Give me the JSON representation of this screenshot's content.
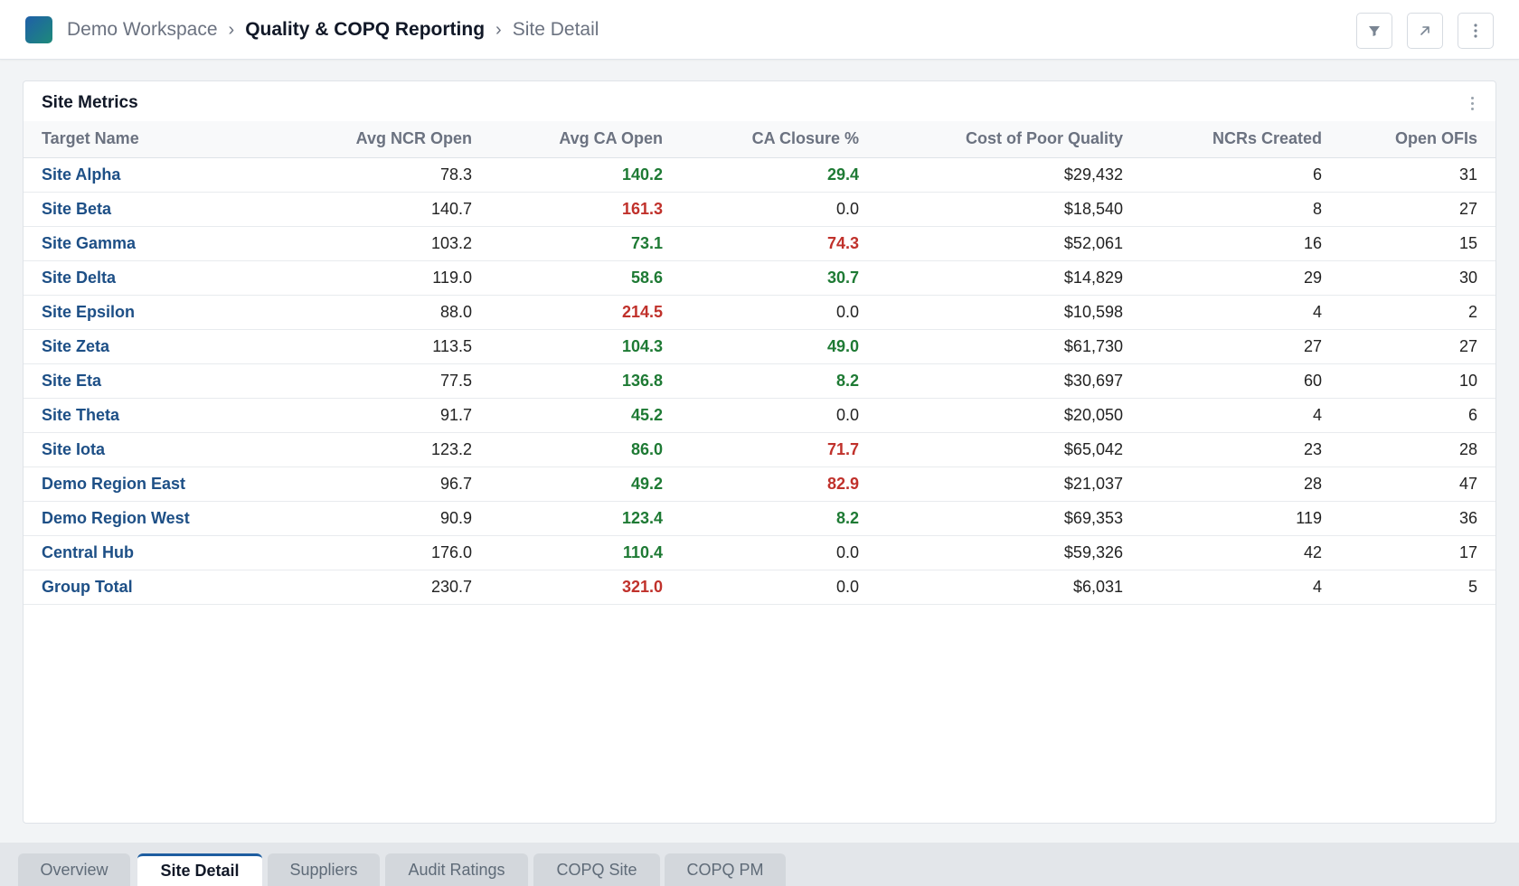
{
  "header": {
    "breadcrumbs": [
      "Demo Workspace",
      "Quality & COPQ Reporting",
      "Site Detail"
    ],
    "separator": "›",
    "actions": {
      "filter_icon": "filter-icon",
      "expand_icon": "expand-icon",
      "more_icon": "more-vertical-icon"
    }
  },
  "card": {
    "title": "Site Metrics",
    "columns": [
      "Target Name",
      "Avg NCR Open",
      "Avg CA Open",
      "CA Closure %",
      "Cost of Poor Quality",
      "NCRs Created",
      "Open OFIs"
    ],
    "rows": [
      {
        "name": "Site Alpha",
        "avg_ncr_open": "78.3",
        "avg_ca_open": "140.2",
        "avg_ca_status": "good",
        "ca_closure": "29.4",
        "ca_closure_status": "good",
        "copq": "$29,432",
        "ncrs_created": "6",
        "open_ofis": "31"
      },
      {
        "name": "Site Beta",
        "avg_ncr_open": "140.7",
        "avg_ca_open": "161.3",
        "avg_ca_status": "bad",
        "ca_closure": "0.0",
        "ca_closure_status": "neutral",
        "copq": "$18,540",
        "ncrs_created": "8",
        "open_ofis": "27"
      },
      {
        "name": "Site Gamma",
        "avg_ncr_open": "103.2",
        "avg_ca_open": "73.1",
        "avg_ca_status": "good",
        "ca_closure": "74.3",
        "ca_closure_status": "bad",
        "copq": "$52,061",
        "ncrs_created": "16",
        "open_ofis": "15"
      },
      {
        "name": "Site Delta",
        "avg_ncr_open": "119.0",
        "avg_ca_open": "58.6",
        "avg_ca_status": "good",
        "ca_closure": "30.7",
        "ca_closure_status": "good",
        "copq": "$14,829",
        "ncrs_created": "29",
        "open_ofis": "30"
      },
      {
        "name": "Site Epsilon",
        "avg_ncr_open": "88.0",
        "avg_ca_open": "214.5",
        "avg_ca_status": "bad",
        "ca_closure": "0.0",
        "ca_closure_status": "neutral",
        "copq": "$10,598",
        "ncrs_created": "4",
        "open_ofis": "2"
      },
      {
        "name": "Site Zeta",
        "avg_ncr_open": "113.5",
        "avg_ca_open": "104.3",
        "avg_ca_status": "good",
        "ca_closure": "49.0",
        "ca_closure_status": "good",
        "copq": "$61,730",
        "ncrs_created": "27",
        "open_ofis": "27"
      },
      {
        "name": "Site Eta",
        "avg_ncr_open": "77.5",
        "avg_ca_open": "136.8",
        "avg_ca_status": "good",
        "ca_closure": "8.2",
        "ca_closure_status": "good",
        "copq": "$30,697",
        "ncrs_created": "60",
        "open_ofis": "10"
      },
      {
        "name": "Site Theta",
        "avg_ncr_open": "91.7",
        "avg_ca_open": "45.2",
        "avg_ca_status": "good",
        "ca_closure": "0.0",
        "ca_closure_status": "neutral",
        "copq": "$20,050",
        "ncrs_created": "4",
        "open_ofis": "6"
      },
      {
        "name": "Site Iota",
        "avg_ncr_open": "123.2",
        "avg_ca_open": "86.0",
        "avg_ca_status": "good",
        "ca_closure": "71.7",
        "ca_closure_status": "bad",
        "copq": "$65,042",
        "ncrs_created": "23",
        "open_ofis": "28"
      },
      {
        "name": "Demo Region East",
        "avg_ncr_open": "96.7",
        "avg_ca_open": "49.2",
        "avg_ca_status": "good",
        "ca_closure": "82.9",
        "ca_closure_status": "bad",
        "copq": "$21,037",
        "ncrs_created": "28",
        "open_ofis": "47"
      },
      {
        "name": "Demo Region West",
        "avg_ncr_open": "90.9",
        "avg_ca_open": "123.4",
        "avg_ca_status": "good",
        "ca_closure": "8.2",
        "ca_closure_status": "good",
        "copq": "$69,353",
        "ncrs_created": "119",
        "open_ofis": "36"
      },
      {
        "name": "Central Hub",
        "avg_ncr_open": "176.0",
        "avg_ca_open": "110.4",
        "avg_ca_status": "good",
        "ca_closure": "0.0",
        "ca_closure_status": "neutral",
        "copq": "$59,326",
        "ncrs_created": "42",
        "open_ofis": "17"
      },
      {
        "name": "Group Total",
        "avg_ncr_open": "230.7",
        "avg_ca_open": "321.0",
        "avg_ca_status": "bad",
        "ca_closure": "0.0",
        "ca_closure_status": "neutral",
        "copq": "$6,031",
        "ncrs_created": "4",
        "open_ofis": "5"
      }
    ]
  },
  "tabs": [
    {
      "label": "Overview",
      "active": false
    },
    {
      "label": "Site Detail",
      "active": true
    },
    {
      "label": "Suppliers",
      "active": false
    },
    {
      "label": "Audit Ratings",
      "active": false
    },
    {
      "label": "COPQ Site",
      "active": false
    },
    {
      "label": "COPQ PM",
      "active": false
    }
  ],
  "colors": {
    "good": "#1e7a34",
    "bad": "#c0312b",
    "link": "#1d4f86",
    "accent": "#1d5da0"
  }
}
